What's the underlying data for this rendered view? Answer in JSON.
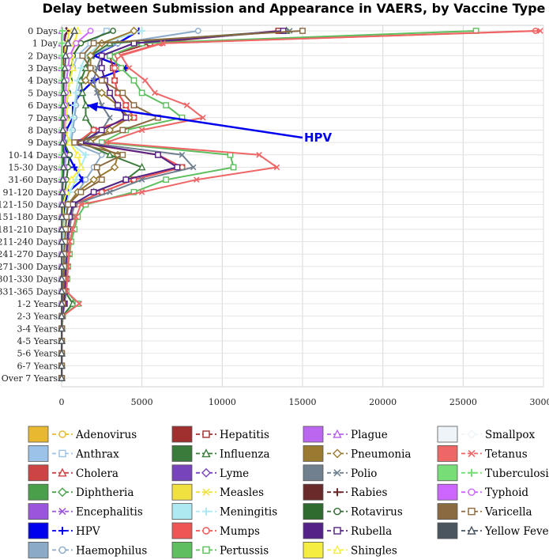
{
  "chart_data": {
    "type": "line",
    "title": "Delay between Submission and Appearance in VAERS, by Vaccine Type",
    "orientation": "horizontal",
    "xlim": [
      0,
      30000
    ],
    "x_ticks": [
      0,
      5000,
      10000,
      15000,
      20000,
      25000,
      30000
    ],
    "x_tick_labels": [
      "0",
      "5000",
      "10000",
      "15000",
      "20000",
      "25000",
      "30000"
    ],
    "grid": true,
    "legend_position": "bottom",
    "categories": [
      "0 Days",
      "1 Day",
      "2 Days",
      "3 Days",
      "4 Days",
      "5 Days",
      "6 Days",
      "7 Days",
      "8 Days",
      "9 Days",
      "10-14 Days",
      "15-30 Days",
      "31-60 Days",
      "91-120 Days",
      "121-150 Days",
      "151-180 Days",
      "181-210 Days",
      "211-240 Days",
      "241-270 Days",
      "271-300 Days",
      "301-330 Days",
      "331-365 Days",
      "1-2 Years",
      "2-3 Years",
      "3-4 Years",
      "4-5 Years",
      "5-6 Years",
      "6-7 Years",
      "Over 7 Years"
    ],
    "annotation": {
      "text": "HPV",
      "color": "#0000ee",
      "target_category": "6 Days",
      "target_value": 1200
    },
    "series": [
      {
        "name": "Adenovirus",
        "color": "#e8b830",
        "marker": "circle",
        "values": [
          100,
          50,
          30,
          20,
          10,
          5,
          5,
          5,
          0,
          0,
          0,
          0,
          0,
          0,
          0,
          0,
          0,
          0,
          0,
          0,
          0,
          0,
          0,
          0,
          0,
          0,
          0,
          0,
          0
        ]
      },
      {
        "name": "Anthrax",
        "color": "#9bc3ea",
        "marker": "square",
        "values": [
          2800,
          1800,
          1000,
          700,
          500,
          400,
          300,
          300,
          200,
          200,
          300,
          200,
          100,
          50,
          30,
          20,
          10,
          10,
          10,
          10,
          10,
          10,
          10,
          0,
          0,
          0,
          0,
          0,
          0
        ]
      },
      {
        "name": "Cholera",
        "color": "#cc4444",
        "marker": "triangle",
        "values": [
          20,
          10,
          5,
          5,
          5,
          0,
          0,
          0,
          0,
          0,
          0,
          0,
          0,
          0,
          0,
          0,
          0,
          0,
          0,
          0,
          0,
          0,
          0,
          0,
          0,
          0,
          0,
          0,
          0
        ]
      },
      {
        "name": "Diphtheria",
        "color": "#4aa04a",
        "marker": "diamond",
        "values": [
          300,
          150,
          100,
          80,
          60,
          50,
          40,
          40,
          30,
          20,
          60,
          40,
          30,
          20,
          10,
          10,
          5,
          5,
          5,
          5,
          5,
          5,
          5,
          0,
          0,
          0,
          0,
          0,
          0
        ]
      },
      {
        "name": "Encephalitis",
        "color": "#9b55dd",
        "marker": "x",
        "values": [
          200,
          120,
          80,
          60,
          50,
          40,
          30,
          30,
          20,
          20,
          40,
          30,
          20,
          10,
          10,
          5,
          5,
          5,
          5,
          5,
          5,
          5,
          5,
          0,
          0,
          0,
          0,
          0,
          0
        ]
      },
      {
        "name": "HPV",
        "color": "#0000ee",
        "marker": "plus",
        "values": [
          4800,
          3500,
          2000,
          4000,
          2000,
          1200,
          700,
          700,
          300,
          100,
          400,
          800,
          1300,
          400,
          200,
          200,
          100,
          100,
          50,
          50,
          50,
          50,
          30,
          20,
          10,
          10,
          10,
          10,
          10
        ]
      },
      {
        "name": "Haemophilus",
        "color": "#8aaac8",
        "marker": "circle",
        "values": [
          8500,
          3500,
          1800,
          1500,
          1200,
          1000,
          900,
          800,
          700,
          600,
          2500,
          2000,
          1500,
          1000,
          400,
          300,
          250,
          200,
          150,
          150,
          100,
          100,
          80,
          30,
          10,
          10,
          10,
          10,
          10
        ]
      },
      {
        "name": "Hepatitis",
        "color": "#a03030",
        "marker": "square",
        "values": [
          13500,
          5500,
          3000,
          3200,
          3300,
          3500,
          4000,
          4500,
          2000,
          1000,
          6000,
          7500,
          4500,
          2500,
          800,
          600,
          500,
          400,
          350,
          300,
          300,
          250,
          200,
          50,
          20,
          10,
          10,
          10,
          10
        ]
      },
      {
        "name": "Influenza",
        "color": "#3a7a3a",
        "marker": "triangle",
        "values": [
          14000,
          3000,
          1800,
          1500,
          1200,
          1300,
          1500,
          1500,
          2000,
          1200,
          3000,
          5000,
          4000,
          2000,
          700,
          500,
          400,
          350,
          300,
          250,
          200,
          200,
          700,
          50,
          20,
          10,
          10,
          10,
          10
        ]
      },
      {
        "name": "Lyme",
        "color": "#7744bb",
        "marker": "diamond",
        "values": [
          300,
          150,
          100,
          80,
          60,
          50,
          40,
          40,
          30,
          20,
          60,
          40,
          30,
          20,
          10,
          10,
          5,
          5,
          5,
          5,
          5,
          5,
          5,
          0,
          0,
          0,
          0,
          0,
          0
        ]
      },
      {
        "name": "Measles",
        "color": "#f0e040",
        "marker": "x",
        "values": [
          500,
          300,
          200,
          150,
          120,
          100,
          80,
          80,
          60,
          50,
          100,
          80,
          60,
          30,
          20,
          10,
          10,
          10,
          10,
          5,
          5,
          5,
          5,
          0,
          0,
          0,
          0,
          0,
          0
        ]
      },
      {
        "name": "Meningitis",
        "color": "#aee8f0",
        "marker": "plus",
        "values": [
          5000,
          2500,
          1500,
          1200,
          1000,
          900,
          800,
          700,
          600,
          500,
          1500,
          1200,
          900,
          500,
          300,
          200,
          150,
          120,
          100,
          100,
          80,
          80,
          60,
          20,
          10,
          10,
          10,
          10,
          10
        ]
      },
      {
        "name": "Mumps",
        "color": "#ee5555",
        "marker": "circle",
        "values": [
          29500,
          6200,
          3500,
          3300,
          3300,
          3500,
          4000,
          4500,
          2000,
          1000,
          6000,
          7500,
          4500,
          2500,
          800,
          600,
          500,
          400,
          350,
          300,
          300,
          250,
          200,
          50,
          20,
          10,
          10,
          10,
          10
        ]
      },
      {
        "name": "Pertussis",
        "color": "#5fbf5f",
        "marker": "square",
        "values": [
          25800,
          5000,
          3000,
          3700,
          4500,
          5000,
          6500,
          7500,
          4000,
          2500,
          10500,
          10700,
          6500,
          4500,
          1500,
          1000,
          800,
          600,
          500,
          400,
          350,
          300,
          1000,
          80,
          30,
          10,
          10,
          10,
          10
        ]
      },
      {
        "name": "Plague",
        "color": "#bb66ee",
        "marker": "triangle",
        "values": [
          20,
          10,
          5,
          5,
          5,
          0,
          0,
          0,
          0,
          0,
          0,
          0,
          0,
          0,
          0,
          0,
          0,
          0,
          0,
          0,
          0,
          0,
          0,
          0,
          0,
          0,
          0,
          0,
          0
        ]
      },
      {
        "name": "Pneumonia",
        "color": "#9a7a30",
        "marker": "diamond",
        "values": [
          4500,
          2500,
          1800,
          1800,
          1500,
          2500,
          3500,
          4200,
          3000,
          1800,
          3500,
          3300,
          2000,
          1000,
          400,
          300,
          250,
          200,
          150,
          150,
          100,
          100,
          80,
          20,
          10,
          10,
          10,
          10,
          10
        ]
      },
      {
        "name": "Polio",
        "color": "#70808f",
        "marker": "x",
        "values": [
          14200,
          4500,
          2500,
          2200,
          2000,
          2200,
          2500,
          3000,
          2500,
          1500,
          7500,
          8200,
          5000,
          3000,
          800,
          600,
          500,
          400,
          350,
          300,
          300,
          250,
          200,
          50,
          20,
          10,
          10,
          10,
          10
        ]
      },
      {
        "name": "Rabies",
        "color": "#6a2a2a",
        "marker": "plus",
        "values": [
          300,
          150,
          100,
          80,
          60,
          50,
          40,
          40,
          30,
          20,
          60,
          40,
          30,
          20,
          10,
          10,
          5,
          5,
          5,
          5,
          5,
          5,
          5,
          0,
          0,
          0,
          0,
          0,
          0
        ]
      },
      {
        "name": "Rotavirus",
        "color": "#2f6a2f",
        "marker": "circle",
        "values": [
          3200,
          1200,
          700,
          600,
          500,
          400,
          300,
          300,
          200,
          150,
          500,
          400,
          300,
          200,
          100,
          80,
          60,
          50,
          40,
          30,
          30,
          20,
          20,
          10,
          0,
          0,
          0,
          0,
          0
        ]
      },
      {
        "name": "Rubella",
        "color": "#552288",
        "marker": "square",
        "values": [
          13800,
          4500,
          2500,
          2500,
          2700,
          3000,
          3500,
          4000,
          2500,
          1200,
          6000,
          7200,
          4000,
          2000,
          700,
          500,
          400,
          350,
          300,
          250,
          250,
          200,
          150,
          50,
          20,
          10,
          10,
          10,
          10
        ]
      },
      {
        "name": "Shingles",
        "color": "#f5ee40",
        "marker": "triangle",
        "values": [
          1000,
          800,
          600,
          700,
          500,
          400,
          300,
          300,
          200,
          500,
          1000,
          1200,
          600,
          300,
          100,
          80,
          60,
          50,
          40,
          30,
          30,
          20,
          20,
          10,
          0,
          0,
          0,
          0,
          0
        ]
      },
      {
        "name": "Smallpox",
        "color": "#eef4f8",
        "marker": "diamond",
        "values": [
          100,
          50,
          30,
          20,
          10,
          5,
          5,
          5,
          0,
          0,
          0,
          0,
          0,
          0,
          0,
          0,
          0,
          0,
          0,
          0,
          0,
          0,
          0,
          0,
          0,
          0,
          0,
          0,
          0
        ]
      },
      {
        "name": "Tetanus",
        "color": "#ee6666",
        "marker": "x",
        "values": [
          29800,
          6300,
          3700,
          4200,
          5200,
          5800,
          7800,
          8800,
          5000,
          2800,
          12300,
          13400,
          8400,
          5000,
          1200,
          900,
          700,
          500,
          450,
          400,
          350,
          300,
          1100,
          80,
          30,
          10,
          10,
          10,
          10
        ]
      },
      {
        "name": "Tuberculosis",
        "color": "#77dd77",
        "marker": "plus",
        "values": [
          50,
          20,
          10,
          5,
          5,
          5,
          0,
          0,
          0,
          0,
          0,
          0,
          0,
          0,
          0,
          0,
          0,
          0,
          0,
          0,
          0,
          0,
          0,
          0,
          0,
          0,
          0,
          0,
          0
        ]
      },
      {
        "name": "Typhoid",
        "color": "#cc66ff",
        "marker": "circle",
        "values": [
          1800,
          900,
          500,
          400,
          300,
          250,
          200,
          200,
          150,
          100,
          200,
          150,
          100,
          50,
          30,
          20,
          10,
          10,
          10,
          10,
          10,
          10,
          10,
          0,
          0,
          0,
          0,
          0,
          0
        ]
      },
      {
        "name": "Varicella",
        "color": "#8a6a40",
        "marker": "square",
        "values": [
          15000,
          2000,
          1300,
          1800,
          2500,
          3800,
          4500,
          6000,
          3800,
          800,
          3800,
          2200,
          2500,
          1200,
          400,
          300,
          250,
          200,
          150,
          150,
          100,
          100,
          80,
          20,
          10,
          10,
          10,
          10,
          10
        ]
      },
      {
        "name": "Yellow Fever",
        "color": "#4a5560",
        "marker": "triangle",
        "values": [
          800,
          400,
          250,
          200,
          150,
          120,
          100,
          90,
          80,
          60,
          150,
          120,
          80,
          50,
          30,
          20,
          10,
          10,
          10,
          10,
          10,
          10,
          10,
          0,
          0,
          0,
          0,
          0,
          0
        ]
      }
    ]
  }
}
